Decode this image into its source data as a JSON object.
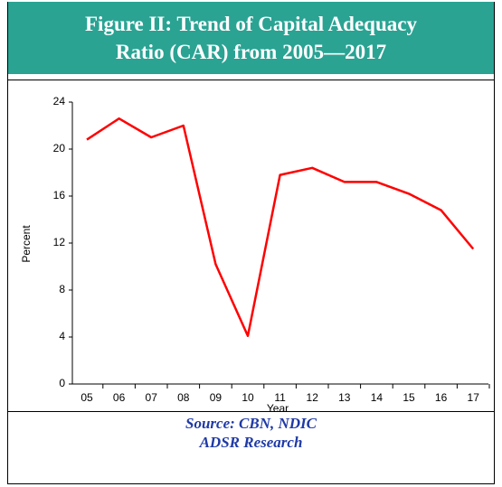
{
  "chart_data": {
    "type": "line",
    "title": "Figure II: Trend of Capital Adequacy Ratio (CAR) from 2005—2017",
    "categories": [
      "05",
      "06",
      "07",
      "08",
      "09",
      "10",
      "11",
      "12",
      "13",
      "14",
      "15",
      "16",
      "17"
    ],
    "series": [
      {
        "name": "CAR",
        "color": "#ff0000",
        "values": [
          20.8,
          22.6,
          21.0,
          22.0,
          10.2,
          4.1,
          17.8,
          18.4,
          17.2,
          17.2,
          16.2,
          14.8,
          11.5
        ]
      }
    ],
    "ylim": [
      0,
      24
    ],
    "yticks": [
      0,
      4,
      8,
      12,
      16,
      20,
      24
    ],
    "xlabel": "Year",
    "ylabel": "Percent",
    "source": [
      "Source: CBN, NDIC",
      "ADSR Research"
    ]
  }
}
